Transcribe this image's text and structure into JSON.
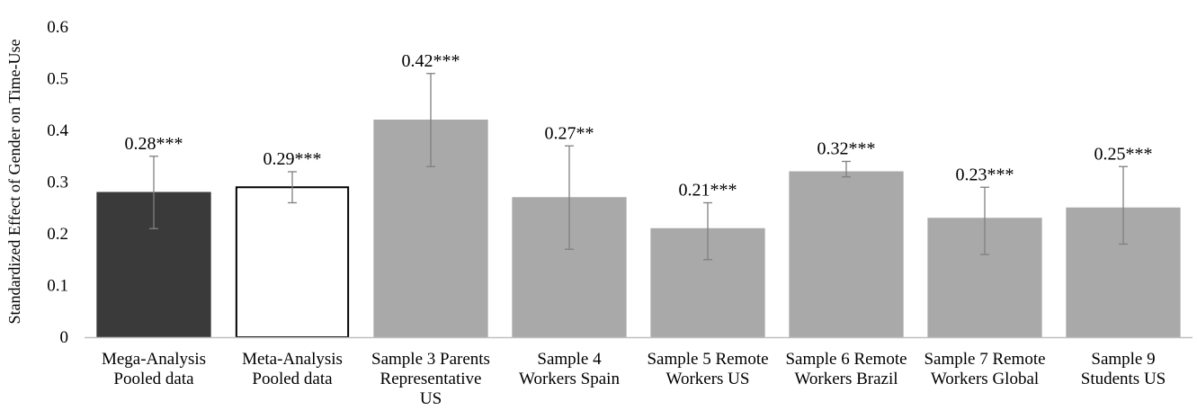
{
  "chart_data": {
    "type": "bar",
    "title": "",
    "xlabel": "",
    "ylabel": "Standardized Effect of Gender on Time-Use",
    "ylim": [
      0,
      0.6
    ],
    "yticks": [
      "0",
      "0.1",
      "0.2",
      "0.3",
      "0.4",
      "0.5",
      "0.6"
    ],
    "grid": false,
    "legend": "none",
    "categories": [
      [
        "Mega-Analysis",
        "Pooled data"
      ],
      [
        "Meta-Analysis",
        "Pooled data"
      ],
      [
        "Sample 3 Parents",
        "Representative",
        "US"
      ],
      [
        "Sample 4",
        "Workers Spain"
      ],
      [
        "Sample 5 Remote",
        "Workers US"
      ],
      [
        "Sample 6 Remote",
        "Workers Brazil"
      ],
      [
        "Sample 7 Remote",
        "Workers Global"
      ],
      [
        "Sample 9",
        "Students US"
      ]
    ],
    "values": [
      0.28,
      0.29,
      0.42,
      0.27,
      0.21,
      0.32,
      0.23,
      0.25
    ],
    "error_low": [
      0.21,
      0.26,
      0.33,
      0.17,
      0.15,
      0.31,
      0.16,
      0.18
    ],
    "error_high": [
      0.35,
      0.32,
      0.51,
      0.37,
      0.26,
      0.34,
      0.29,
      0.33
    ],
    "value_labels": [
      "0.28***",
      "0.29***",
      "0.42***",
      "0.27**",
      "0.21***",
      "0.32***",
      "0.23***",
      "0.25***"
    ],
    "bar_fills": [
      "#3a3a3a",
      "#ffffff",
      "#a9a9a9",
      "#a9a9a9",
      "#a9a9a9",
      "#a9a9a9",
      "#a9a9a9",
      "#a9a9a9"
    ],
    "bar_strokes": [
      "#3a3a3a",
      "#000000",
      "#a9a9a9",
      "#a9a9a9",
      "#a9a9a9",
      "#a9a9a9",
      "#a9a9a9",
      "#a9a9a9"
    ],
    "error_bar_color": "#808080",
    "axis_color": "#bfbfbf"
  }
}
